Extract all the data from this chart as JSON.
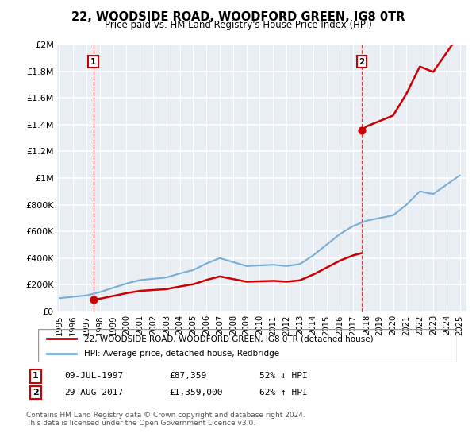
{
  "title": "22, WOODSIDE ROAD, WOODFORD GREEN, IG8 0TR",
  "subtitle": "Price paid vs. HM Land Registry's House Price Index (HPI)",
  "property_label": "22, WOODSIDE ROAD, WOODFORD GREEN, IG8 0TR (detached house)",
  "hpi_label": "HPI: Average price, detached house, Redbridge",
  "sale1_date": "09-JUL-1997",
  "sale1_price": "£87,359",
  "sale1_hpi": "52% ↓ HPI",
  "sale2_date": "29-AUG-2017",
  "sale2_price": "£1,359,000",
  "sale2_hpi": "62% ↑ HPI",
  "footnote": "Contains HM Land Registry data © Crown copyright and database right 2024.\nThis data is licensed under the Open Government Licence v3.0.",
  "property_color": "#cc0000",
  "hpi_color": "#7aadd4",
  "sale1_x": 1997.52,
  "sale1_y": 87359,
  "sale2_x": 2017.66,
  "sale2_y": 1359000,
  "ylim": [
    0,
    2000000
  ],
  "xlim": [
    1994.8,
    2025.5
  ],
  "yticks": [
    0,
    200000,
    400000,
    600000,
    800000,
    1000000,
    1200000,
    1400000,
    1600000,
    1800000,
    2000000
  ],
  "ytick_labels": [
    "£0",
    "£200K",
    "£400K",
    "£600K",
    "£800K",
    "£1M",
    "£1.2M",
    "£1.4M",
    "£1.6M",
    "£1.8M",
    "£2M"
  ],
  "xticks": [
    1995,
    1996,
    1997,
    1998,
    1999,
    2000,
    2001,
    2002,
    2003,
    2004,
    2005,
    2006,
    2007,
    2008,
    2009,
    2010,
    2011,
    2012,
    2013,
    2014,
    2015,
    2016,
    2017,
    2018,
    2019,
    2020,
    2021,
    2022,
    2023,
    2024,
    2025
  ],
  "bg_color": "#ffffff",
  "plot_bg_color": "#e8eef4"
}
